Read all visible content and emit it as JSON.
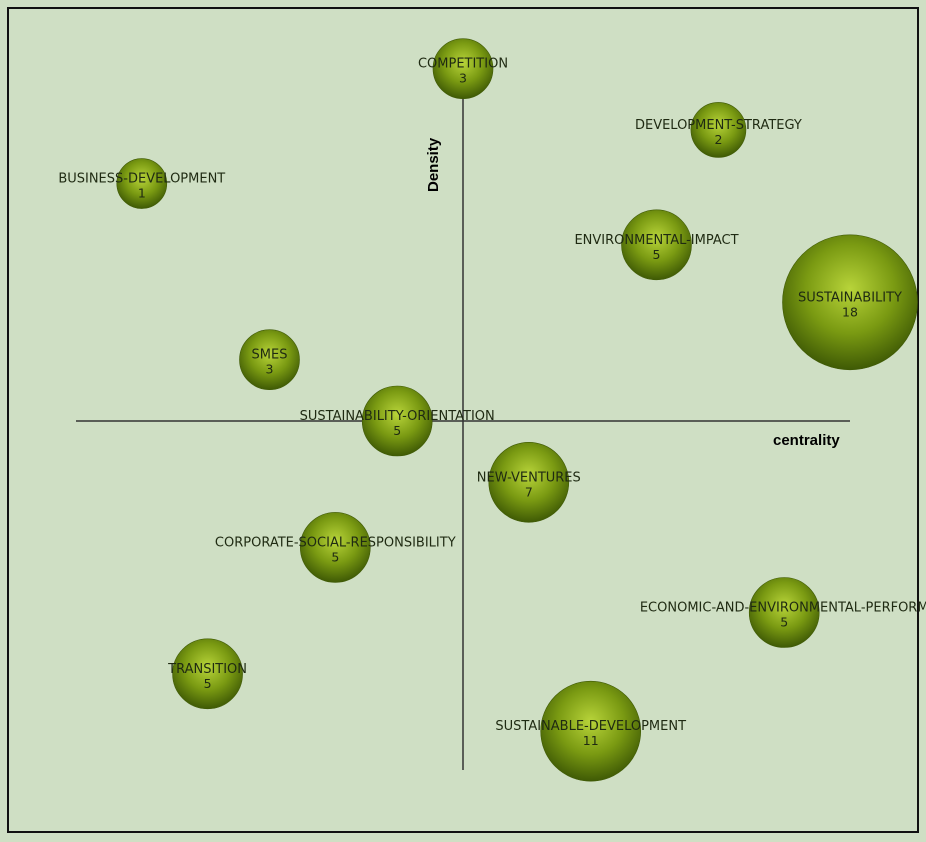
{
  "chart_data": {
    "type": "scatter",
    "xlabel": "centrality",
    "ylabel": "Density",
    "colors": {
      "bubble_light": "#b8d43a",
      "bubble_mid": "#7a9a12",
      "bubble_dark": "#3f5a05",
      "background": "#cfdfc4",
      "axis": "#333333"
    },
    "points": [
      {
        "label": "COMPETITION",
        "count": "3",
        "x": 0.0,
        "y": 0.92
      },
      {
        "label": "DEVELOPMENT-STRATEGY",
        "count": "2",
        "x": 0.66,
        "y": 0.76
      },
      {
        "label": "BUSINESS-DEVELOPMENT",
        "count": "1",
        "x": -0.83,
        "y": 0.62
      },
      {
        "label": "ENVIRONMENTAL-IMPACT",
        "count": "5",
        "x": 0.5,
        "y": 0.46
      },
      {
        "label": "SUSTAINABILITY",
        "count": "18",
        "x": 1.0,
        "y": 0.31
      },
      {
        "label": "SMES",
        "count": "3",
        "x": -0.5,
        "y": 0.16
      },
      {
        "label": "SUSTAINABILITY-ORIENTATION",
        "count": "5",
        "x": -0.17,
        "y": 0.0
      },
      {
        "label": "NEW-VENTURES",
        "count": "7",
        "x": 0.17,
        "y": -0.16
      },
      {
        "label": "CORPORATE-SOCIAL-RESPONSIBILITY",
        "count": "5",
        "x": -0.33,
        "y": -0.33
      },
      {
        "label": "ECONOMIC-AND-ENVIRONMENTAL-PERFORM",
        "count": "5",
        "x": 0.83,
        "y": -0.5
      },
      {
        "label": "TRANSITION",
        "count": "5",
        "x": -0.66,
        "y": -0.66
      },
      {
        "label": "SUSTAINABLE-DEVELOPMENT",
        "count": "11",
        "x": 0.33,
        "y": -0.81
      }
    ]
  }
}
